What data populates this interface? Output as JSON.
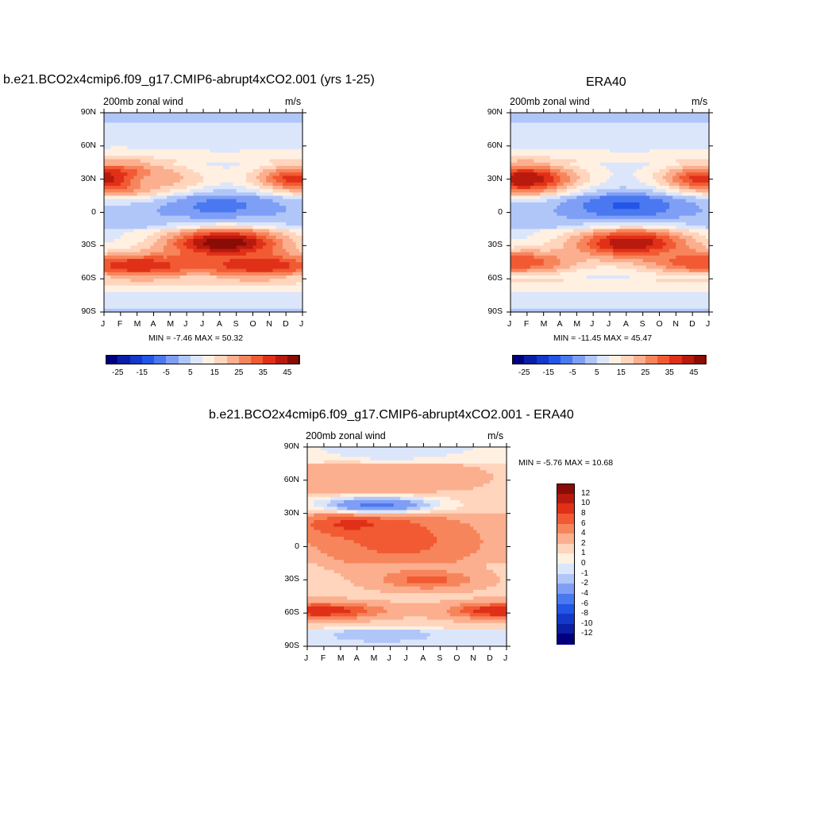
{
  "palette": {
    "levels": [
      "#00007f",
      "#0a1fa6",
      "#1438c8",
      "#2356e6",
      "#4a78f0",
      "#7f9ef5",
      "#b1c6f8",
      "#dce6fb",
      "#fff0e2",
      "#ffd5bd",
      "#fbaf8f",
      "#f7855c",
      "#f15a33",
      "#e03018",
      "#b81a0e",
      "#8a0c06"
    ]
  },
  "chart_data": [
    {
      "type": "heatmap",
      "title": "b.e21.BCO2x4cmip6.f09_g17.CMIP6-abrupt4xCO2.001 (yrs 1-25)",
      "subtitle_left": "200mb zonal wind",
      "subtitle_right": "m/s",
      "stats": "MIN =  -7.46 MAX =  50.32",
      "x_tick_labels": [
        "J",
        "F",
        "M",
        "A",
        "M",
        "J",
        "J",
        "A",
        "S",
        "O",
        "N",
        "D",
        "J"
      ],
      "y_tick_labels": [
        "90N",
        "60N",
        "30N",
        "0",
        "30S",
        "60S",
        "90S"
      ],
      "ylim": [
        -90,
        90
      ],
      "legend": {
        "orientation": "horizontal",
        "labels": [
          "-25",
          "-15",
          "-5",
          "5",
          "15",
          "25",
          "35",
          "45"
        ],
        "levels": [
          -30,
          -25,
          -20,
          -15,
          -10,
          -5,
          0,
          5,
          10,
          15,
          20,
          25,
          30,
          35,
          40,
          45,
          50
        ]
      },
      "features": [
        {
          "lat": 30,
          "month": 0.8,
          "value": 50,
          "lat_w": 10,
          "mon_w": 2.2
        },
        {
          "lat": 30,
          "month": 11.6,
          "value": 38,
          "lat_w": 9,
          "mon_w": 1.8
        },
        {
          "lat": 28,
          "month": 3.5,
          "value": 22,
          "lat_w": 9,
          "mon_w": 2.0
        },
        {
          "lat": 5,
          "month": 7.0,
          "value": -7,
          "lat_w": 10,
          "mon_w": 2.5
        },
        {
          "lat": -28,
          "month": 7.3,
          "value": 50,
          "lat_w": 10,
          "mon_w": 2.6
        },
        {
          "lat": -48,
          "month": 2.0,
          "value": 40,
          "lat_w": 8,
          "mon_w": 3.0
        },
        {
          "lat": -48,
          "month": 9.5,
          "value": 40,
          "lat_w": 8,
          "mon_w": 3.0
        }
      ]
    },
    {
      "type": "heatmap",
      "title": "ERA40",
      "subtitle_left": "200mb zonal wind",
      "subtitle_right": "m/s",
      "stats": "MIN = -11.45 MAX =  45.47",
      "x_tick_labels": [
        "J",
        "F",
        "M",
        "A",
        "M",
        "J",
        "J",
        "A",
        "S",
        "O",
        "N",
        "D",
        "J"
      ],
      "y_tick_labels": [
        "90N",
        "60N",
        "30N",
        "0",
        "30S",
        "60S",
        "90S"
      ],
      "ylim": [
        -90,
        90
      ],
      "legend": {
        "orientation": "horizontal",
        "labels": [
          "-25",
          "-15",
          "-5",
          "5",
          "15",
          "25",
          "35",
          "45"
        ],
        "levels": [
          -30,
          -25,
          -20,
          -15,
          -10,
          -5,
          0,
          5,
          10,
          15,
          20,
          25,
          30,
          35,
          40,
          45,
          50
        ]
      },
      "features": [
        {
          "lat": 30,
          "month": 0.9,
          "value": 45,
          "lat_w": 10,
          "mon_w": 2.2
        },
        {
          "lat": 30,
          "month": 11.6,
          "value": 38,
          "lat_w": 9,
          "mon_w": 1.8
        },
        {
          "lat": 5,
          "month": 7.0,
          "value": -11,
          "lat_w": 10,
          "mon_w": 2.5
        },
        {
          "lat": -28,
          "month": 7.3,
          "value": 45,
          "lat_w": 10,
          "mon_w": 2.6
        },
        {
          "lat": -45,
          "month": 0.5,
          "value": 35,
          "lat_w": 8,
          "mon_w": 2.5
        },
        {
          "lat": -45,
          "month": 11.5,
          "value": 35,
          "lat_w": 8,
          "mon_w": 2.5
        }
      ]
    },
    {
      "type": "heatmap",
      "title": "b.e21.BCO2x4cmip6.f09_g17.CMIP6-abrupt4xCO2.001 - ERA40",
      "subtitle_left": "200mb zonal wind",
      "subtitle_right": "m/s",
      "stats": "MIN =  -5.76 MAX =  10.68",
      "x_tick_labels": [
        "J",
        "F",
        "M",
        "A",
        "M",
        "J",
        "J",
        "A",
        "S",
        "O",
        "N",
        "D",
        "J"
      ],
      "y_tick_labels": [
        "90N",
        "60N",
        "30N",
        "0",
        "30S",
        "60S",
        "90S"
      ],
      "ylim": [
        -90,
        90
      ],
      "legend": {
        "orientation": "vertical",
        "labels": [
          "12",
          "10",
          "8",
          "6",
          "4",
          "2",
          "1",
          "0",
          "-1",
          "-2",
          "-4",
          "-6",
          "-8",
          "-10",
          "-12"
        ],
        "levels": [
          -14,
          -12,
          -10,
          -8,
          -6,
          -4,
          -2,
          -1,
          0,
          1,
          2,
          4,
          6,
          8,
          10,
          12,
          14
        ]
      },
      "features": [
        {
          "lat": 20,
          "month": 3.2,
          "value": 10,
          "lat_w": 8,
          "mon_w": 2.2
        },
        {
          "lat": 5,
          "month": 5.5,
          "value": 7,
          "lat_w": 15,
          "mon_w": 3.0
        },
        {
          "lat": -30,
          "month": 7.2,
          "value": 7,
          "lat_w": 6,
          "mon_w": 2.0
        },
        {
          "lat": -58,
          "month": 0.8,
          "value": 10,
          "lat_w": 5,
          "mon_w": 2.5
        },
        {
          "lat": -58,
          "month": 11.5,
          "value": 10,
          "lat_w": 5,
          "mon_w": 2.0
        },
        {
          "lat": 38,
          "month": 4.2,
          "value": -5,
          "lat_w": 6,
          "mon_w": 2.5
        },
        {
          "lat": 62,
          "month": 4.0,
          "value": 4,
          "lat_w": 10,
          "mon_w": 4.0
        },
        {
          "lat": -80,
          "month": 4.5,
          "value": -2,
          "lat_w": 5,
          "mon_w": 2.5
        },
        {
          "lat": 85,
          "month": 5.0,
          "value": -1,
          "lat_w": 5,
          "mon_w": 2.0
        }
      ]
    }
  ]
}
